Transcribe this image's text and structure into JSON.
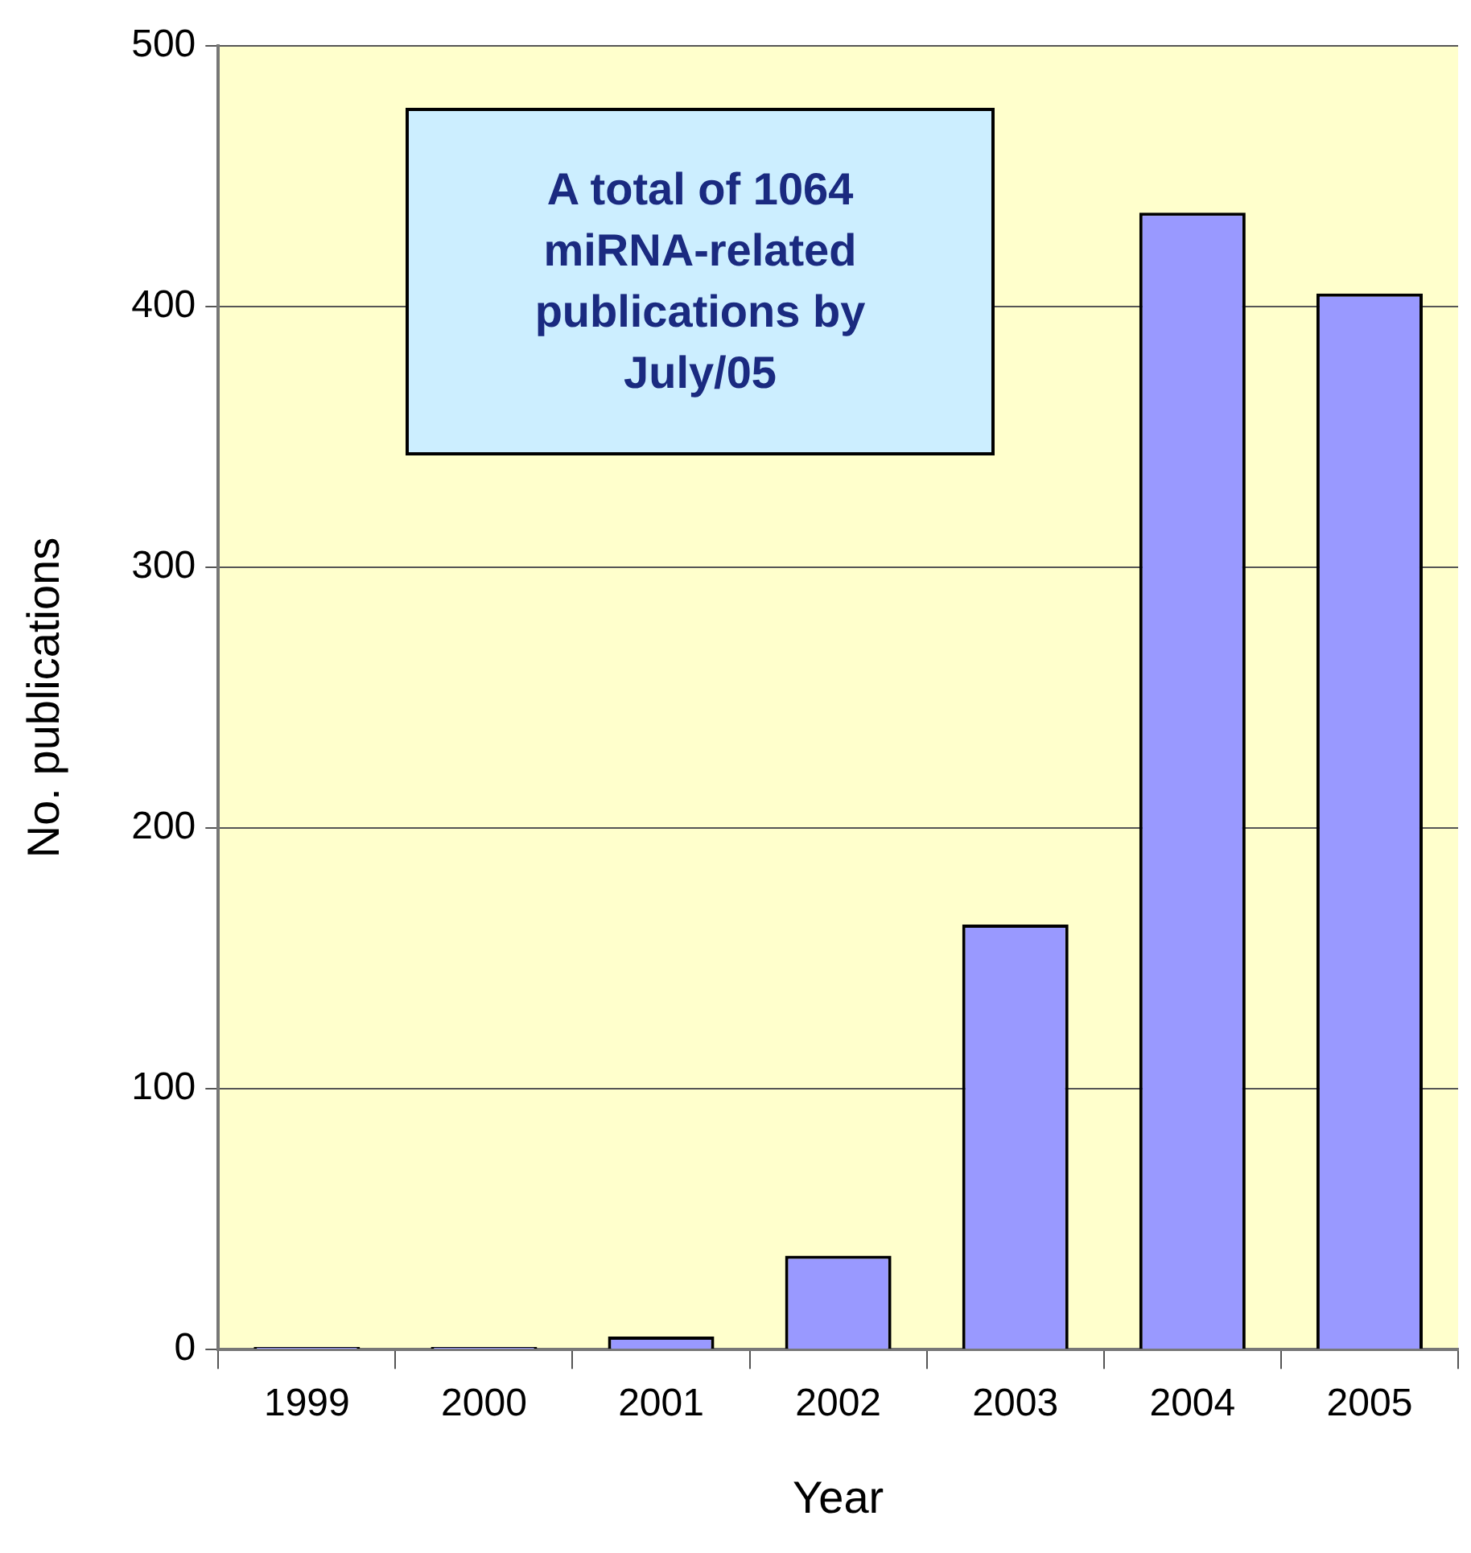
{
  "chart_data": {
    "type": "bar",
    "xlabel": "Year",
    "ylabel": "No. publications",
    "categories": [
      "1999",
      "2000",
      "2001",
      "2002",
      "2003",
      "2004",
      "2005"
    ],
    "values": [
      1,
      1,
      5,
      36,
      163,
      436,
      405
    ],
    "color": "#9999ff",
    "ylim": [
      0,
      500
    ],
    "yticks": [
      0,
      100,
      200,
      300,
      400,
      500
    ],
    "grid": "y",
    "legend": false,
    "annotations": [
      "A total of 1064 miRNA-related publications by July/05"
    ]
  }
}
